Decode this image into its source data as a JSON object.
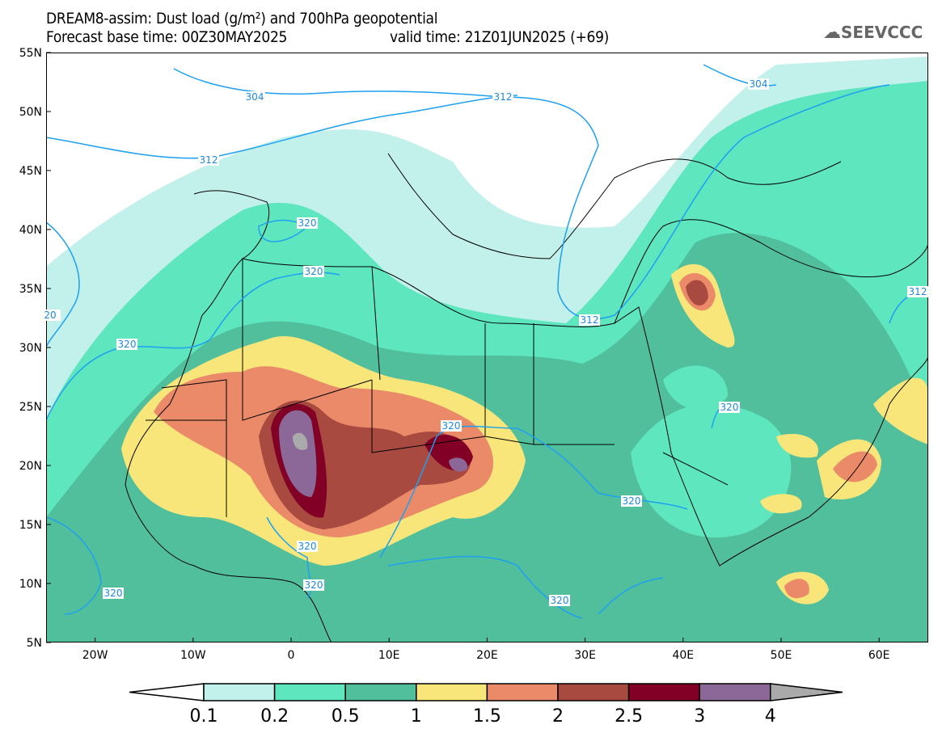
{
  "title": {
    "line1": "DREAM8-assim: Dust load (g/m²) and 700hPa geopotential",
    "base_label": "Forecast base time: 00Z30MAY2025",
    "valid_label": "valid time: 21Z01JUN2025 (+69)"
  },
  "logo": {
    "text": "SEEVCCC"
  },
  "axes": {
    "lat_labels": [
      "55N",
      "50N",
      "45N",
      "40N",
      "35N",
      "30N",
      "25N",
      "20N",
      "15N",
      "10N",
      "5N"
    ],
    "lon_labels": [
      "20W",
      "10W",
      "0",
      "10E",
      "20E",
      "30E",
      "40E",
      "50E",
      "60E"
    ]
  },
  "contour_labels": [
    "304",
    "312",
    "304",
    "312",
    "320",
    "320",
    "320",
    "312",
    "312",
    "20",
    "320",
    "320",
    "320",
    "320",
    "320",
    "320",
    "320"
  ],
  "colorbar": {
    "colors": [
      "#ffffff",
      "#c2f0ea",
      "#5ee6bf",
      "#52bf9c",
      "#f8e67a",
      "#ea8a68",
      "#a84a3f",
      "#820025",
      "#8c6899",
      "#aaaaaa"
    ],
    "labels": [
      "0.1",
      "0.2",
      "0.5",
      "1",
      "1.5",
      "2",
      "2.5",
      "3",
      "4"
    ]
  },
  "contour_color": "#1ea0f0"
}
